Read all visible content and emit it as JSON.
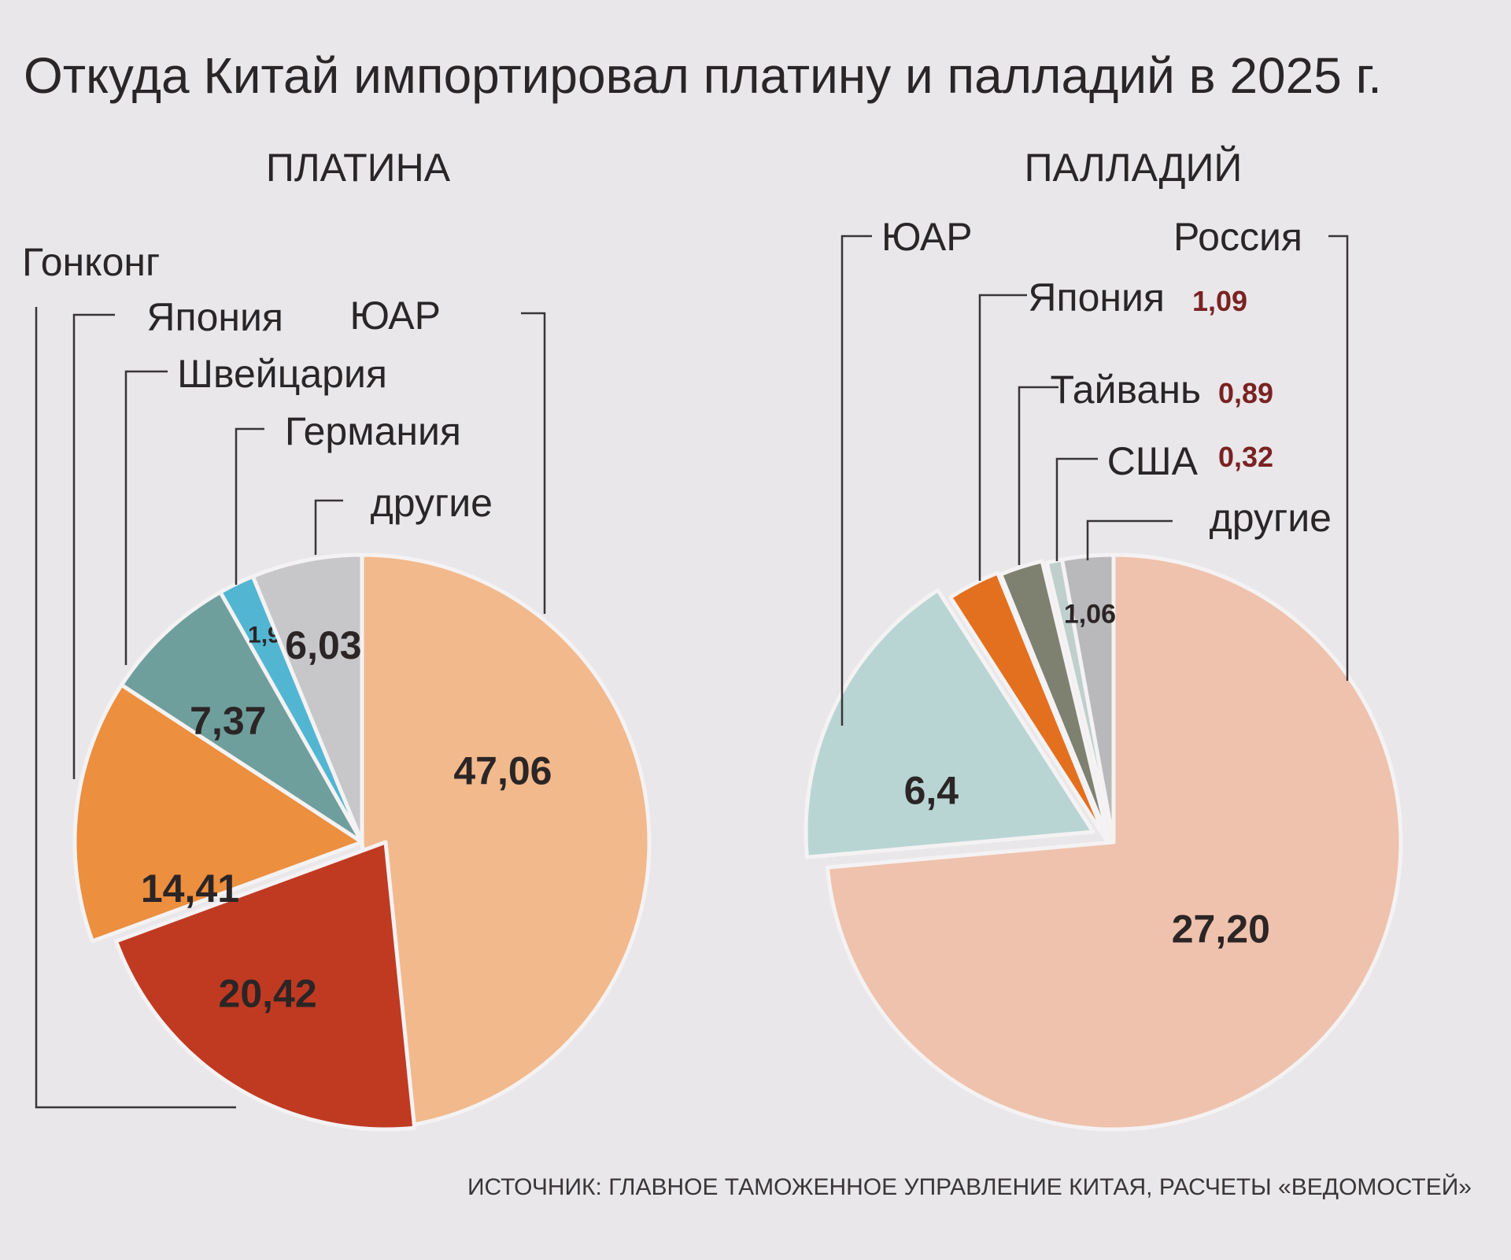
{
  "title": "Откуда Китай импортировал платину и палладий в 2025 г.",
  "source": "ИСТОЧНИК: ГЛАВНОЕ ТАМОЖЕННОЕ УПРАВЛЕНИЕ КИТАЯ, РАСЧЕТЫ «ВЕДОМОСТЕЙ»",
  "chart_data": [
    {
      "type": "pie",
      "title": "ПЛАТИНА",
      "slices": [
        {
          "name": "ЮАР",
          "value": 47.06,
          "value_label": "47,06",
          "color": "#f2b98c"
        },
        {
          "name": "Гонконг",
          "value": 20.42,
          "value_label": "20,42",
          "color": "#c03a22"
        },
        {
          "name": "Япония",
          "value": 14.41,
          "value_label": "14,41",
          "color": "#ec8f3e"
        },
        {
          "name": "Швейцария",
          "value": 7.37,
          "value_label": "7,37",
          "color": "#6f9f9c"
        },
        {
          "name": "Германия",
          "value": 1.95,
          "value_label": "1,95",
          "color": "#52b6d2"
        },
        {
          "name": "другие",
          "value": 6.03,
          "value_label": "6,03",
          "color": "#c7c7c9"
        }
      ]
    },
    {
      "type": "pie",
      "title": "ПАЛЛАДИЙ",
      "slices": [
        {
          "name": "Россия",
          "value": 27.2,
          "value_label": "27,20",
          "color": "#efc2ad"
        },
        {
          "name": "ЮАР",
          "value": 6.4,
          "value_label": "6,4",
          "color": "#b8d5d3"
        },
        {
          "name": "Япония",
          "value": 1.09,
          "value_label": "1,09",
          "color": "#e3701f"
        },
        {
          "name": "Тайвань",
          "value": 0.89,
          "value_label": "0,89",
          "color": "#7e8170"
        },
        {
          "name": "США",
          "value": 0.32,
          "value_label": "0,32",
          "color": "#bfcfcc"
        },
        {
          "name": "другие",
          "value": 1.06,
          "value_label": "1,06",
          "color": "#b9b9bb"
        }
      ]
    }
  ]
}
